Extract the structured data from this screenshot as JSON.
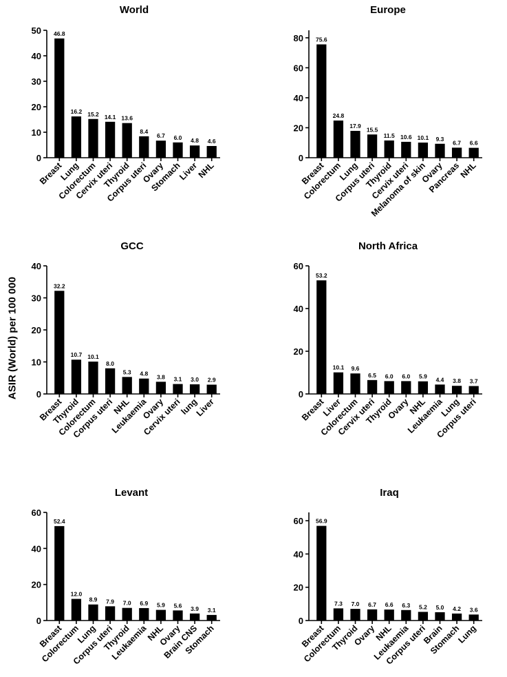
{
  "figure": {
    "ylabel": "ASIR (World) per 100 000"
  },
  "chart_data": [
    {
      "type": "bar",
      "title": "World",
      "ylabel": "ASIR (World) per 100 000",
      "ylim": [
        0,
        50
      ],
      "yticks": [
        0,
        10,
        20,
        30,
        40,
        50
      ],
      "categories": [
        "Breast",
        "Lung",
        "Colorectum",
        "Cervix uteri",
        "Thyroid",
        "Corpus uteri",
        "Ovary",
        "Stomach",
        "Liver",
        "NHL"
      ],
      "values": [
        46.8,
        16.2,
        15.2,
        14.1,
        13.6,
        8.4,
        6.7,
        6.0,
        4.8,
        4.6
      ],
      "labels": [
        "46.8",
        "16.2",
        "15.2",
        "14.1",
        "13.6",
        "8.4",
        "6.7",
        "6.0",
        "4.8",
        "4.6"
      ]
    },
    {
      "type": "bar",
      "title": "Europe",
      "ylabel": "ASIR (World) per 100 000",
      "ylim": [
        0,
        85
      ],
      "yticks": [
        0,
        20,
        40,
        60,
        80
      ],
      "categories": [
        "Breast",
        "Colorectum",
        "Lung",
        "Corpus uteri",
        "Thyroid",
        "Cervix uteri",
        "Melanoma of skin",
        "Ovary",
        "Pancreas",
        "NHL"
      ],
      "values": [
        75.6,
        24.8,
        17.9,
        15.5,
        11.5,
        10.6,
        10.1,
        9.3,
        6.7,
        6.6
      ],
      "labels": [
        "75.6",
        "24.8",
        "17.9",
        "15.5",
        "11.5",
        "10.6",
        "10.1",
        "9.3",
        "6.7",
        "6.6"
      ]
    },
    {
      "type": "bar",
      "title": "GCC",
      "ylabel": "ASIR (World) per 100 000",
      "ylim": [
        0,
        40
      ],
      "yticks": [
        0,
        10,
        20,
        30,
        40
      ],
      "categories": [
        "Breast",
        "Thyroid",
        "Colorectum",
        "Corpus uteri",
        "NHL",
        "Leukaemia",
        "Ovary",
        "Cervix uteri",
        "lung",
        "Liver"
      ],
      "values": [
        32.2,
        10.7,
        10.1,
        8.0,
        5.3,
        4.8,
        3.8,
        3.1,
        3.0,
        2.9
      ],
      "labels": [
        "32.2",
        "10.7",
        "10.1",
        "8.0",
        "5.3",
        "4.8",
        "3.8",
        "3.1",
        "3.0",
        "2.9"
      ]
    },
    {
      "type": "bar",
      "title": "North Africa",
      "ylabel": "ASIR (World) per 100 000",
      "ylim": [
        0,
        60
      ],
      "yticks": [
        0,
        20,
        40,
        60
      ],
      "categories": [
        "Breast",
        "Liver",
        "Colorectum",
        "Cervix uteri",
        "Thyroid",
        "Ovary",
        "NHL",
        "Leukaemia",
        "Lung",
        "Corpus uteri"
      ],
      "values": [
        53.2,
        10.1,
        9.6,
        6.5,
        6.0,
        6.0,
        5.9,
        4.4,
        3.8,
        3.7
      ],
      "labels": [
        "53.2",
        "10.1",
        "9.6",
        "6.5",
        "6.0",
        "6.0",
        "5.9",
        "4.4",
        "3.8",
        "3.7"
      ]
    },
    {
      "type": "bar",
      "title": "Levant",
      "ylabel": "ASIR (World) per 100 000",
      "ylim": [
        0,
        60
      ],
      "yticks": [
        0,
        20,
        40,
        60
      ],
      "categories": [
        "Breast",
        "Colorectum",
        "Lung",
        "Corpus uteri",
        "Thyroid",
        "Leukaemia",
        "NHL",
        "Ovary",
        "Brain CNS",
        "Stomach"
      ],
      "values": [
        52.4,
        12.0,
        8.9,
        7.9,
        7.0,
        6.9,
        5.9,
        5.6,
        3.9,
        3.1
      ],
      "labels": [
        "52.4",
        "12.0",
        "8.9",
        "7.9",
        "7.0",
        "6.9",
        "5.9",
        "5.6",
        "3.9",
        "3.1"
      ]
    },
    {
      "type": "bar",
      "title": "Iraq",
      "ylabel": "ASIR (World) per 100 000",
      "ylim": [
        0,
        65
      ],
      "yticks": [
        0,
        20,
        40,
        60
      ],
      "categories": [
        "Breast",
        "Colorectum",
        "Thyroid",
        "Ovary",
        "NHL",
        "Leukaemia",
        "Corpus uteri",
        "Brain",
        "Stomach",
        "Lung"
      ],
      "values": [
        56.9,
        7.3,
        7.0,
        6.7,
        6.6,
        6.3,
        5.2,
        5.0,
        4.2,
        3.6
      ],
      "labels": [
        "56.9",
        "7.3",
        "7.0",
        "6.7",
        "6.6",
        "6.3",
        "5.2",
        "5.0",
        "4.2",
        "3.6"
      ]
    }
  ]
}
